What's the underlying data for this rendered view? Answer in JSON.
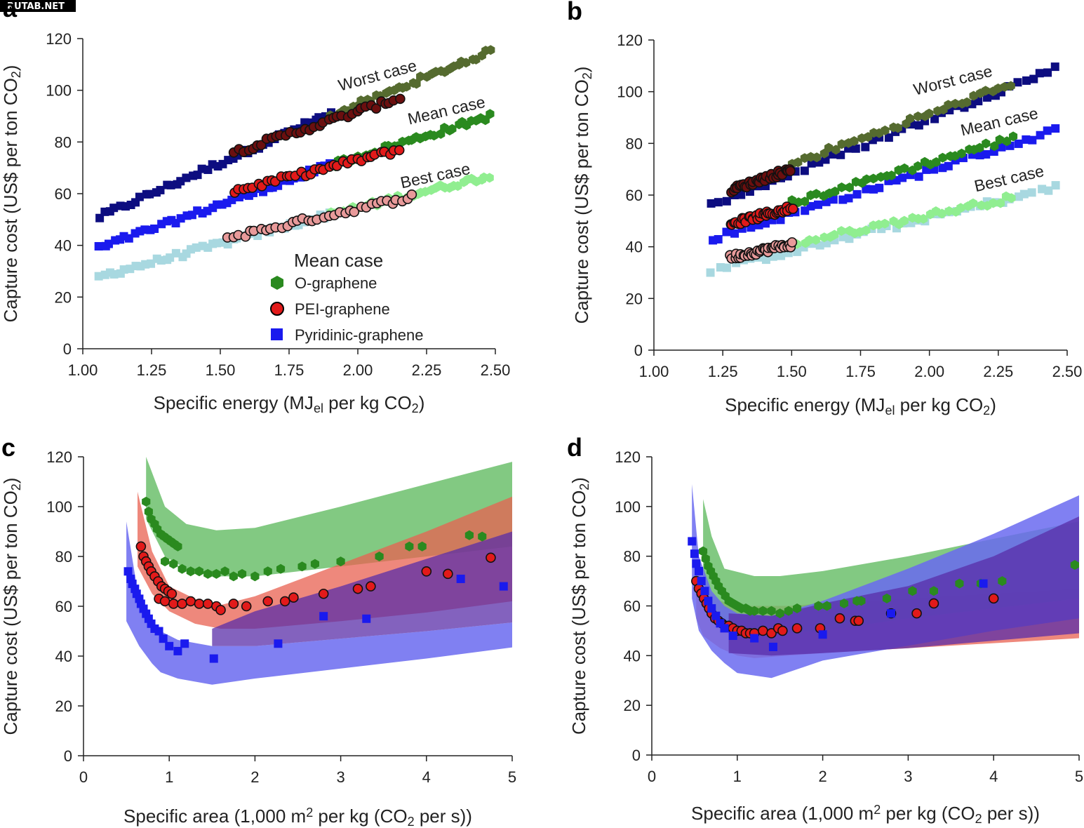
{
  "watermark": "RUTAB.NET",
  "colors": {
    "o_graphene": "#2a8a1f",
    "pei_graphene": "#e21a1a",
    "pyridinic_graphene": "#1a1aee",
    "o_worst": "#556b2f",
    "o_best": "#90ee90",
    "pei_worst": "#6b0f0f",
    "pei_best": "#e89a9a",
    "pyr_worst": "#0d0d80",
    "pyr_best": "#a8d8e0",
    "band_green": "#6cbf6c",
    "band_red": "#e86050",
    "band_blue": "#6a6af0",
    "band_purple": "#5a2ea8"
  },
  "legend": {
    "title": "Mean case",
    "entries": [
      "O-graphene",
      "PEI-graphene",
      "Pyridinic-graphene"
    ]
  },
  "chart_data": [
    {
      "panel": "a",
      "type": "scatter",
      "xlabel": "Specific energy (MJel per kg CO2)",
      "ylabel": "Capture cost (US$ per ton CO2)",
      "xlim": [
        1.0,
        2.5
      ],
      "ylim": [
        0,
        120
      ],
      "xticks": [
        "1.00",
        "1.25",
        "1.50",
        "1.75",
        "2.00",
        "2.25",
        "2.50"
      ],
      "yticks": [
        "0",
        "20",
        "40",
        "60",
        "80",
        "100",
        "120"
      ],
      "annotations": [
        "Worst case",
        "Mean case",
        "Best case"
      ],
      "series": [
        {
          "name": "Pyridinic-graphene worst",
          "x_range": [
            1.06,
            1.9
          ],
          "y_range": [
            51,
            91
          ]
        },
        {
          "name": "Pyridinic-graphene mean",
          "x_range": [
            1.06,
            1.9
          ],
          "y_range": [
            39,
            71
          ]
        },
        {
          "name": "Pyridinic-graphene best",
          "x_range": [
            1.06,
            1.9
          ],
          "y_range": [
            28,
            52
          ]
        },
        {
          "name": "PEI-graphene worst",
          "x_range": [
            1.55,
            2.15
          ],
          "y_range": [
            76,
            97
          ]
        },
        {
          "name": "PEI-graphene mean",
          "x_range": [
            1.55,
            2.15
          ],
          "y_range": [
            61,
            77
          ]
        },
        {
          "name": "PEI-graphene best",
          "x_range": [
            1.53,
            2.2
          ],
          "y_range": [
            43,
            59
          ]
        },
        {
          "name": "O-graphene worst",
          "x_range": [
            1.9,
            2.48
          ],
          "y_range": [
            90,
            115
          ]
        },
        {
          "name": "O-graphene mean",
          "x_range": [
            1.9,
            2.48
          ],
          "y_range": [
            71,
            90
          ]
        },
        {
          "name": "O-graphene best",
          "x_range": [
            1.9,
            2.48
          ],
          "y_range": [
            52,
            67
          ]
        }
      ]
    },
    {
      "panel": "b",
      "type": "scatter",
      "xlabel": "Specific energy (MJel per kg CO2)",
      "ylabel": "Capture cost (US$ per ton CO2)",
      "xlim": [
        1.0,
        2.5
      ],
      "ylim": [
        0,
        120
      ],
      "xticks": [
        "1.00",
        "1.25",
        "1.50",
        "1.75",
        "2.00",
        "2.25",
        "2.50"
      ],
      "yticks": [
        "0",
        "20",
        "40",
        "60",
        "80",
        "100",
        "120"
      ],
      "annotations": [
        "Worst case",
        "Mean case",
        "Best case"
      ],
      "series": [
        {
          "name": "Pyridinic-graphene worst",
          "x_range": [
            1.21,
            2.46
          ],
          "y_range": [
            56,
            109
          ]
        },
        {
          "name": "Pyridinic-graphene mean",
          "x_range": [
            1.21,
            2.46
          ],
          "y_range": [
            43,
            85
          ]
        },
        {
          "name": "Pyridinic-graphene best",
          "x_range": [
            1.21,
            2.46
          ],
          "y_range": [
            31,
            63
          ]
        },
        {
          "name": "PEI-graphene worst",
          "x_range": [
            1.28,
            1.5
          ],
          "y_range": [
            62,
            70
          ]
        },
        {
          "name": "PEI-graphene mean",
          "x_range": [
            1.28,
            1.5
          ],
          "y_range": [
            49,
            55
          ]
        },
        {
          "name": "PEI-graphene best",
          "x_range": [
            1.28,
            1.5
          ],
          "y_range": [
            36,
            41
          ]
        },
        {
          "name": "O-graphene worst",
          "x_range": [
            1.5,
            2.3
          ],
          "y_range": [
            72,
            103
          ]
        },
        {
          "name": "O-graphene mean",
          "x_range": [
            1.5,
            2.3
          ],
          "y_range": [
            57,
            82
          ]
        },
        {
          "name": "O-graphene best",
          "x_range": [
            1.5,
            2.3
          ],
          "y_range": [
            41,
            59
          ]
        }
      ]
    },
    {
      "panel": "c",
      "type": "scatter",
      "xlabel": "Specific area (1,000 m2 per kg (CO2 per s))",
      "ylabel": "Capture cost (US$ per ton CO2)",
      "xlim": [
        0,
        5
      ],
      "ylim": [
        0,
        120
      ],
      "xticks": [
        "0",
        "1",
        "2",
        "3",
        "4",
        "5"
      ],
      "yticks": [
        "0",
        "20",
        "40",
        "60",
        "80",
        "100",
        "120"
      ],
      "bands": [
        {
          "name": "O-graphene",
          "x": [
            0.73,
            0.95,
            1.2,
            1.55,
            2.0,
            3.0,
            4.0,
            5.0
          ],
          "upper": [
            120,
            100,
            93,
            90.5,
            91.5,
            100,
            109,
            118
          ],
          "lower": [
            95,
            80,
            75,
            72,
            72,
            76,
            80,
            84
          ]
        },
        {
          "name": "PEI-graphene",
          "x": [
            0.63,
            0.8,
            1.0,
            1.3,
            1.6,
            2.0,
            3.0,
            4.0,
            5.0
          ],
          "upper": [
            106,
            82,
            68,
            63,
            60.5,
            64,
            77,
            90,
            104
          ],
          "lower": [
            76,
            65,
            58,
            53,
            51,
            51,
            54,
            57.5,
            62
          ]
        },
        {
          "name": "Pyridinic-graphene",
          "x": [
            0.5,
            0.65,
            0.8,
            0.9,
            1.1,
            1.5,
            2.0,
            3.0,
            4.0,
            5.0
          ],
          "upper": [
            94,
            62,
            54,
            50,
            46.5,
            44,
            44,
            47,
            50,
            53.5
          ],
          "lower": [
            54,
            44,
            37,
            33.5,
            31,
            28.5,
            31,
            35,
            39,
            43.5
          ]
        },
        {
          "name": "Overlap",
          "x": [
            1.5,
            2.0,
            3.0,
            4.0,
            5.0
          ],
          "upper": [
            51,
            58,
            68,
            79,
            90
          ],
          "lower": [
            44,
            44,
            47,
            50,
            53.5
          ]
        }
      ],
      "series": [
        {
          "name": "O-graphene",
          "x": [
            0.73,
            0.76,
            0.79,
            0.83,
            0.86,
            0.9,
            0.94,
            0.98,
            1.02,
            1.06,
            1.1,
            0.95,
            1.05,
            1.15,
            1.25,
            1.35,
            1.45,
            1.55,
            1.65,
            1.75,
            1.85,
            2.0,
            2.15,
            2.3,
            2.55,
            2.7,
            3.0,
            3.45,
            3.8,
            3.95,
            4.5,
            4.65
          ],
          "y": [
            102,
            98,
            95,
            93,
            91,
            89,
            88,
            87,
            86,
            85,
            84,
            78,
            77,
            75,
            74,
            74,
            73,
            73,
            74,
            72,
            73,
            72,
            74,
            75,
            76,
            77,
            78,
            80,
            84,
            84,
            88.5,
            88
          ]
        },
        {
          "name": "PEI-graphene",
          "x": [
            0.67,
            0.7,
            0.73,
            0.76,
            0.79,
            0.83,
            0.87,
            0.91,
            0.95,
            0.99,
            1.03,
            0.88,
            0.95,
            1.05,
            1.15,
            1.25,
            1.35,
            1.45,
            1.55,
            1.6,
            1.75,
            1.9,
            2.15,
            2.35,
            2.45,
            2.8,
            3.2,
            3.35,
            4.0,
            4.25,
            4.75
          ],
          "y": [
            84,
            80,
            78,
            76,
            74,
            72,
            70,
            68,
            67,
            66,
            65,
            63,
            62,
            61,
            61,
            62,
            61,
            61,
            60,
            58.5,
            61,
            60,
            62,
            62,
            63.5,
            65,
            67,
            68,
            74,
            73,
            79.5
          ]
        },
        {
          "name": "Pyridinic-graphene",
          "x": [
            0.52,
            0.55,
            0.57,
            0.6,
            0.62,
            0.65,
            0.67,
            0.7,
            0.73,
            0.76,
            0.79,
            0.83,
            0.88,
            0.93,
            1.0,
            1.1,
            1.18,
            1.52,
            2.27,
            2.8,
            3.3,
            4.4,
            4.9
          ],
          "y": [
            74,
            71,
            69,
            67,
            65,
            63,
            61,
            59,
            57,
            55,
            53,
            51,
            50,
            47,
            44,
            42,
            45,
            39,
            45,
            56,
            55,
            71,
            68
          ]
        }
      ]
    },
    {
      "panel": "d",
      "type": "scatter",
      "xlabel": "Specific area (1,000 m2 per kg (CO2 per s))",
      "ylabel": "Capture cost (US$ per ton CO2)",
      "xlim": [
        0,
        5
      ],
      "ylim": [
        0,
        120
      ],
      "xticks": [
        "0",
        "1",
        "2",
        "3",
        "4",
        "5"
      ],
      "yticks": [
        "0",
        "20",
        "40",
        "60",
        "80",
        "100",
        "120"
      ],
      "bands": [
        {
          "name": "O-graphene",
          "x": [
            0.6,
            0.7,
            0.85,
            1.2,
            1.5,
            2.0,
            3.0,
            4.0,
            5.0
          ],
          "upper": [
            103,
            88,
            75,
            72,
            72,
            74,
            80,
            87,
            94
          ],
          "lower": [
            70,
            60,
            52,
            49,
            49,
            50,
            55,
            59,
            63
          ]
        },
        {
          "name": "PEI-graphene",
          "x": [
            0.52,
            0.6,
            0.8,
            1.0,
            1.2,
            1.6,
            2.0,
            3.0,
            4.0,
            5.0
          ],
          "upper": [
            78,
            68,
            62,
            60,
            60,
            60,
            61,
            63,
            65,
            67
          ],
          "lower": [
            55,
            48,
            43,
            40,
            39,
            40,
            41,
            43,
            45,
            47
          ]
        },
        {
          "name": "Pyridinic-graphene",
          "x": [
            0.47,
            0.55,
            0.7,
            0.85,
            1.0,
            1.4,
            2.0,
            3.0,
            4.0,
            5.0
          ],
          "upper": [
            109,
            80,
            66,
            60,
            57,
            56,
            62,
            75,
            89,
            104.5
          ],
          "lower": [
            63,
            50,
            42,
            37,
            33,
            31,
            38,
            44,
            50,
            55
          ]
        },
        {
          "name": "Overlap",
          "x": [
            0.9,
            1.4,
            2.0,
            3.0,
            4.0,
            5.0
          ],
          "upper": [
            57,
            56,
            61,
            68,
            80,
            96
          ],
          "lower": [
            41,
            40,
            41,
            43,
            46,
            49
          ]
        }
      ],
      "series": [
        {
          "name": "O-graphene",
          "x": [
            0.6,
            0.63,
            0.66,
            0.69,
            0.72,
            0.75,
            0.78,
            0.82,
            0.86,
            0.9,
            0.95,
            1.0,
            1.05,
            1.1,
            1.15,
            1.2,
            1.3,
            1.4,
            1.5,
            1.6,
            1.7,
            1.95,
            2.05,
            2.25,
            2.4,
            2.45,
            2.75,
            3.05,
            3.3,
            3.6,
            3.85,
            4.1,
            4.95
          ],
          "y": [
            82,
            79,
            76,
            74,
            72,
            70,
            68,
            66,
            64,
            62,
            61,
            60,
            59,
            59,
            58,
            58,
            58,
            58,
            57,
            58,
            59,
            60,
            60,
            61,
            62,
            62,
            63,
            66,
            66,
            69,
            69,
            70,
            76.5
          ]
        },
        {
          "name": "PEI-graphene",
          "x": [
            0.52,
            0.55,
            0.58,
            0.61,
            0.64,
            0.67,
            0.7,
            0.74,
            0.78,
            0.82,
            0.86,
            0.9,
            0.95,
            1.0,
            1.05,
            1.1,
            1.15,
            1.2,
            1.3,
            1.4,
            1.48,
            1.53,
            1.7,
            1.97,
            2.2,
            2.38,
            2.42,
            2.8,
            3.1,
            3.3,
            4.0
          ],
          "y": [
            70,
            67,
            65,
            63,
            61,
            59,
            57,
            55,
            54,
            53,
            52,
            52,
            51,
            50,
            50,
            49,
            49,
            49,
            50,
            49,
            51,
            50,
            51,
            51,
            55,
            54,
            54,
            57,
            57,
            61,
            63
          ]
        },
        {
          "name": "Pyridinic-graphene",
          "x": [
            0.47,
            0.5,
            0.52,
            0.55,
            0.58,
            0.62,
            0.66,
            0.7,
            0.75,
            0.8,
            0.85,
            0.95,
            1.2,
            1.42,
            2.0,
            2.8,
            3.88
          ],
          "y": [
            86,
            81,
            77,
            74,
            70,
            66,
            62,
            59,
            56,
            53,
            51,
            48,
            47,
            43.5,
            48.5,
            57,
            69
          ]
        }
      ]
    }
  ]
}
